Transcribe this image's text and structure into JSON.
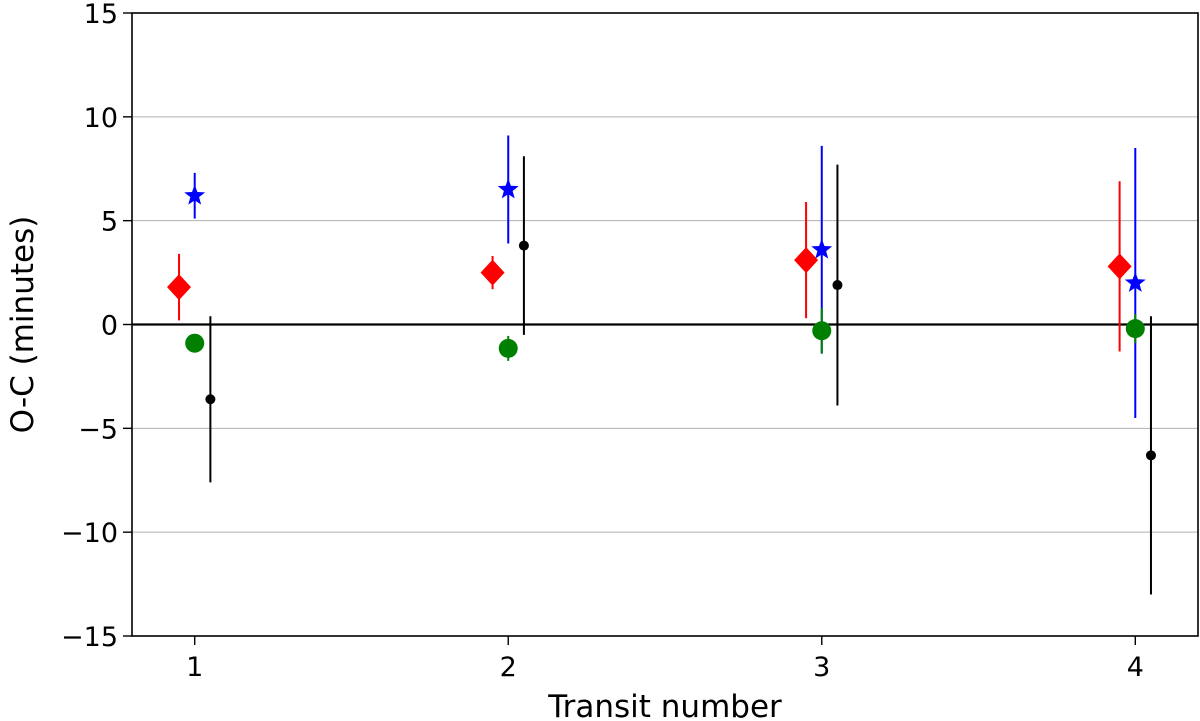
{
  "chart_data": {
    "type": "scatter",
    "xlabel": "Transit number",
    "ylabel": "O-C (minutes)",
    "xlim": [
      0.8,
      4.2
    ],
    "ylim": [
      -15,
      15
    ],
    "x_ticks": [
      1,
      2,
      3,
      4
    ],
    "x_tick_labels": [
      "1",
      "2",
      "3",
      "4"
    ],
    "y_ticks": [
      -15,
      -10,
      -5,
      0,
      5,
      10,
      15
    ],
    "y_tick_labels": [
      "−15",
      "−10",
      "−5",
      "0",
      "5",
      "10",
      "15"
    ],
    "grid": "horizontal",
    "reference_line_y": 0,
    "series": [
      {
        "marker": "diamond",
        "color": "#ff0000",
        "x_offset": -0.05,
        "points": [
          {
            "x": 1,
            "y": 1.8,
            "err": 1.6
          },
          {
            "x": 2,
            "y": 2.5,
            "err": 0.8
          },
          {
            "x": 3,
            "y": 3.1,
            "err": 2.8
          },
          {
            "x": 4,
            "y": 2.8,
            "err": 4.1
          }
        ]
      },
      {
        "marker": "star",
        "color": "#0000ff",
        "x_offset": 0.0,
        "points": [
          {
            "x": 1,
            "y": 6.2,
            "err": 1.1
          },
          {
            "x": 2,
            "y": 6.5,
            "err": 2.6
          },
          {
            "x": 3,
            "y": 3.6,
            "err": 5.0
          },
          {
            "x": 4,
            "y": 2.0,
            "err": 6.5
          }
        ]
      },
      {
        "marker": "circle",
        "color": "#008000",
        "x_offset": 0.0,
        "points": [
          {
            "x": 1,
            "y": -0.9,
            "err": 0.3
          },
          {
            "x": 2,
            "y": -1.15,
            "err": 0.6
          },
          {
            "x": 3,
            "y": -0.3,
            "err": 1.1
          },
          {
            "x": 4,
            "y": -0.2,
            "err": 0.7
          }
        ]
      },
      {
        "marker": "small-circle",
        "color": "#000000",
        "x_offset": 0.05,
        "points": [
          {
            "x": 1,
            "y": -3.6,
            "err": 4.0
          },
          {
            "x": 2,
            "y": 3.8,
            "err": 4.3
          },
          {
            "x": 3,
            "y": 1.9,
            "err": 5.8
          },
          {
            "x": 4,
            "y": -6.3,
            "err": 6.7
          }
        ]
      }
    ]
  }
}
